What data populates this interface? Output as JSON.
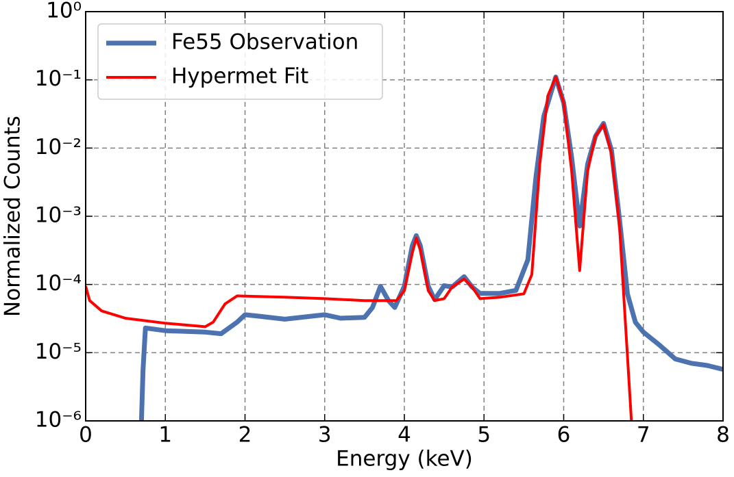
{
  "chart_data": {
    "type": "line",
    "xlabel": "Energy (keV)",
    "ylabel": "Normalized Counts",
    "xlim": [
      0,
      8
    ],
    "xticks": [
      0,
      1,
      2,
      3,
      4,
      5,
      6,
      7,
      8
    ],
    "ylim": [
      1e-06,
      1
    ],
    "ylog": true,
    "yticks": [
      {
        "value": 1e-06,
        "label": "10⁻⁶"
      },
      {
        "value": 1e-05,
        "label": "10⁻⁵"
      },
      {
        "value": 0.0001,
        "label": "10⁻⁴"
      },
      {
        "value": 0.001,
        "label": "10⁻³"
      },
      {
        "value": 0.01,
        "label": "10⁻²"
      },
      {
        "value": 0.1,
        "label": "10⁻¹"
      },
      {
        "value": 1,
        "label": "10⁰"
      }
    ],
    "grid": true,
    "legend": "upper left",
    "series": [
      {
        "name": "Fe55 Observation",
        "color": "#4c72b0",
        "width": 7,
        "x": [
          0.7,
          0.72,
          0.75,
          1.0,
          1.5,
          1.7,
          1.9,
          2.0,
          2.2,
          2.5,
          3.0,
          3.2,
          3.5,
          3.6,
          3.7,
          3.8,
          3.88,
          4.0,
          4.1,
          4.15,
          4.2,
          4.3,
          4.38,
          4.5,
          4.6,
          4.75,
          4.85,
          4.95,
          5.2,
          5.4,
          5.55,
          5.65,
          5.75,
          5.9,
          6.0,
          6.1,
          6.2,
          6.3,
          6.4,
          6.5,
          6.6,
          6.7,
          6.8,
          6.9,
          7.0,
          7.2,
          7.4,
          7.6,
          7.8,
          8.0
        ],
        "values": [
          1e-06,
          5.6e-06,
          2.3e-05,
          2.1e-05,
          2e-05,
          1.9e-05,
          2.8e-05,
          3.6e-05,
          3.4e-05,
          3.1e-05,
          3.6e-05,
          3.2e-05,
          3.3e-05,
          4.6e-05,
          9.4e-05,
          5.8e-05,
          4.6e-05,
          9.4e-05,
          0.00037,
          0.00052,
          0.00037,
          9.4e-05,
          6e-05,
          9.6e-05,
          9.2e-05,
          0.00013,
          9.2e-05,
          7.4e-05,
          7.4e-05,
          8.2e-05,
          0.00023,
          0.0036,
          0.029,
          0.11,
          0.046,
          0.0073,
          0.00072,
          0.0058,
          0.015,
          0.023,
          0.0092,
          0.00091,
          7.3e-05,
          2.8e-05,
          2e-05,
          1.3e-05,
          8.1e-06,
          7e-06,
          6.5e-06,
          5.7e-06
        ]
      },
      {
        "name": "Hypermet Fit",
        "color": "#ff0000",
        "width": 4,
        "x": [
          0,
          0.05,
          0.2,
          0.5,
          1.0,
          1.5,
          1.6,
          1.75,
          1.9,
          2.5,
          3.0,
          3.5,
          3.9,
          4.0,
          4.1,
          4.15,
          4.2,
          4.3,
          4.38,
          4.5,
          4.6,
          4.75,
          4.85,
          4.95,
          5.2,
          5.5,
          5.6,
          5.7,
          5.8,
          5.9,
          6.0,
          6.1,
          6.2,
          6.3,
          6.4,
          6.5,
          6.6,
          6.7,
          6.8,
          6.85
        ],
        "values": [
          9.4e-05,
          5.8e-05,
          4.1e-05,
          3.2e-05,
          2.7e-05,
          2.4e-05,
          2.8e-05,
          5.2e-05,
          6.8e-05,
          6.5e-05,
          6.2e-05,
          5.8e-05,
          5.8e-05,
          8.1e-05,
          0.00029,
          0.00048,
          0.00032,
          8.1e-05,
          5.8e-05,
          6.2e-05,
          9.2e-05,
          0.00012,
          9.2e-05,
          6.2e-05,
          6.5e-05,
          7.3e-05,
          0.00014,
          0.0058,
          0.058,
          0.11,
          0.046,
          0.0046,
          0.00016,
          0.0046,
          0.015,
          0.022,
          0.0082,
          0.00072,
          9e-06,
          1e-06
        ]
      }
    ]
  }
}
